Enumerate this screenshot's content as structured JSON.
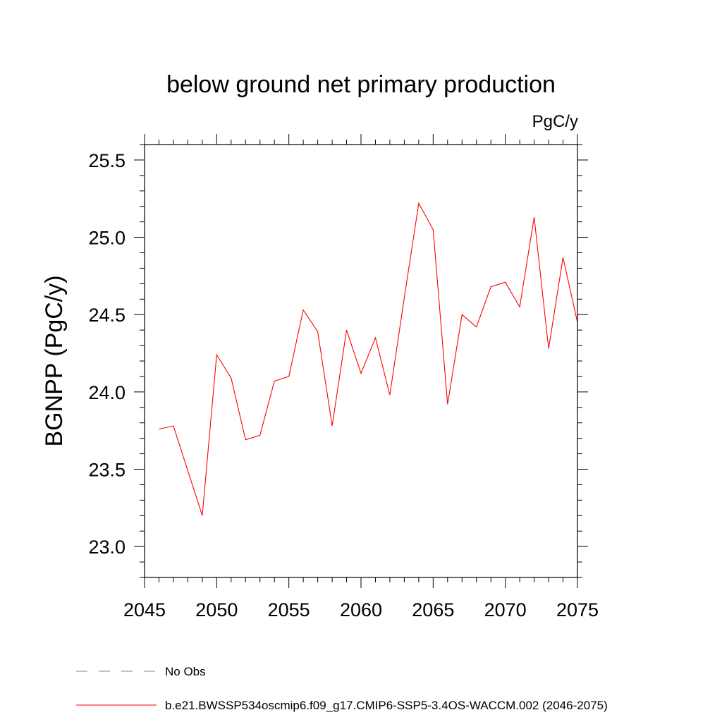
{
  "chart_data": {
    "type": "line",
    "title": "below ground net primary production",
    "units_label": "PgC/y",
    "ylabel": "BGNPP  (PgC/y)",
    "xlabel": "",
    "xlim": [
      2045,
      2075
    ],
    "ylim": [
      22.8,
      25.6
    ],
    "grid": false,
    "legend_placement": "bottom-left",
    "x_ticks": [
      2045,
      2050,
      2055,
      2060,
      2065,
      2070,
      2075
    ],
    "x_tick_labels": [
      "2045",
      "2050",
      "2055",
      "2060",
      "2065",
      "2070",
      "2075"
    ],
    "y_ticks": [
      23.0,
      23.5,
      24.0,
      24.5,
      25.0,
      25.5
    ],
    "y_tick_labels": [
      "23.0",
      "23.5",
      "24.0",
      "24.5",
      "25.0",
      "25.5"
    ],
    "legend": [
      {
        "label": "No Obs",
        "color": "#8a7fb0",
        "style": "dashed"
      },
      {
        "label": "b.e21.BWSSP534oscmip6.f09_g17.CMIP6-SSP5-3.4OS-WACCM.002 (2046-2075)",
        "color": "#ff0000",
        "style": "solid"
      }
    ],
    "series": [
      {
        "color": "#ff0000",
        "x": [
          2046,
          2047,
          2048,
          2049,
          2050,
          2051,
          2052,
          2053,
          2054,
          2055,
          2056,
          2057,
          2058,
          2059,
          2060,
          2061,
          2062,
          2063,
          2064,
          2065,
          2066,
          2067,
          2068,
          2069,
          2070,
          2071,
          2072,
          2073,
          2074,
          2075
        ],
        "values": [
          23.76,
          23.78,
          23.49,
          23.2,
          24.24,
          24.09,
          23.69,
          23.72,
          24.07,
          24.1,
          24.53,
          24.39,
          23.78,
          24.4,
          24.12,
          24.35,
          23.98,
          24.61,
          25.22,
          25.05,
          23.92,
          24.5,
          24.42,
          24.68,
          24.71,
          24.55,
          25.13,
          24.28,
          24.87,
          24.45
        ]
      }
    ]
  }
}
